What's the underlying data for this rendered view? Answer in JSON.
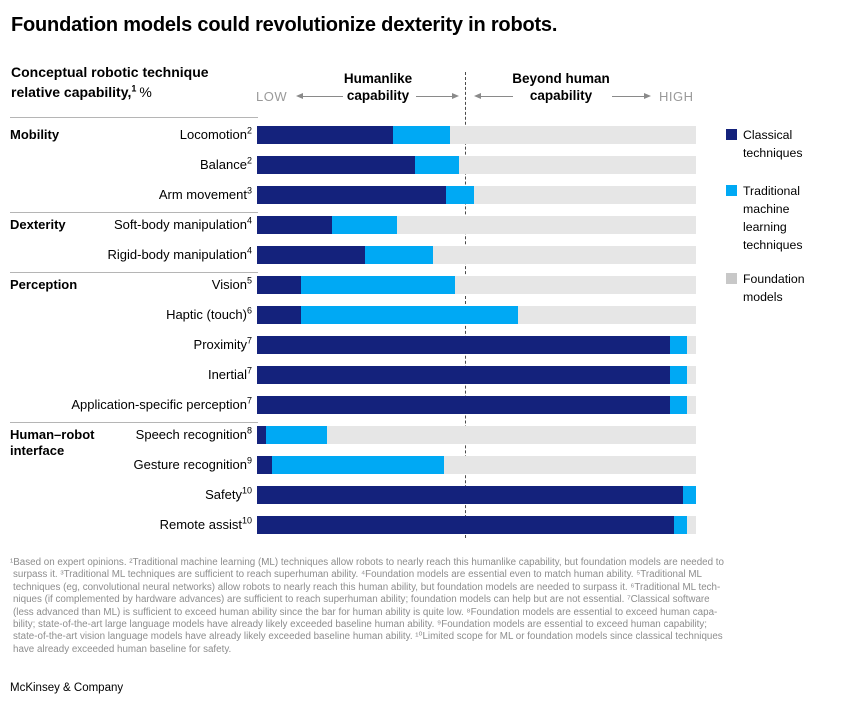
{
  "title": "Foundation models could revolutionize dexterity in robots.",
  "subtitle": {
    "line1": "Conceptual robotic technique",
    "line2": "relative capability,",
    "sup": "1",
    "unit": "%"
  },
  "axis": {
    "low": "LOW",
    "high": "HIGH",
    "left_label_line1": "Humanlike",
    "left_label_line2": "capability",
    "right_label_line1": "Beyond human",
    "right_label_line2": "capability"
  },
  "icons": {
    "left_arrowhead": "css-triangle-left",
    "right_arrowhead": "css-triangle-right"
  },
  "legend": [
    {
      "name": "Classical techniques",
      "color": "#14227c"
    },
    {
      "name": "Traditional machine learning techniques",
      "color": "#00a9f4"
    },
    {
      "name": "Foundation models",
      "color": "#c8c8c8"
    }
  ],
  "chart_data": {
    "type": "bar",
    "orientation": "horizontal-stacked",
    "title": "Conceptual robotic technique relative capability, %",
    "unit": "percent of axis (LOW to HIGH)",
    "axis_notes": {
      "min_label": "LOW",
      "max_label": "HIGH",
      "humanlike_boundary_pct": 47.5,
      "left_zone": "Humanlike capability",
      "right_zone": "Beyond human capability"
    },
    "series": [
      "Classical techniques",
      "Traditional machine learning techniques",
      "Foundation models"
    ],
    "colors": {
      "classical": "#14227c",
      "traditional_ml": "#00a9f4",
      "foundation": "#e6e6e6"
    },
    "groups": [
      {
        "name": "Mobility",
        "start_row": 0
      },
      {
        "name": "Dexterity",
        "start_row": 3
      },
      {
        "name": "Perception",
        "start_row": 5
      },
      {
        "name": "Human–robot interface",
        "start_row": 10
      }
    ],
    "rows": [
      {
        "group": "Mobility",
        "label": "Locomotion",
        "sup": "2",
        "classical": 31,
        "traditional_ml": 13,
        "foundation": 56
      },
      {
        "group": "Mobility",
        "label": "Balance",
        "sup": "2",
        "classical": 36,
        "traditional_ml": 10,
        "foundation": 54
      },
      {
        "group": "Mobility",
        "label": "Arm movement",
        "sup": "3",
        "classical": 43,
        "traditional_ml": 6.5,
        "foundation": 50.5
      },
      {
        "group": "Dexterity",
        "label": "Soft-body manipulation",
        "sup": "4",
        "classical": 17,
        "traditional_ml": 15,
        "foundation": 68
      },
      {
        "group": "Dexterity",
        "label": "Rigid-body manipulation",
        "sup": "4",
        "classical": 24.5,
        "traditional_ml": 15.5,
        "foundation": 60
      },
      {
        "group": "Perception",
        "label": "Vision",
        "sup": "5",
        "classical": 10,
        "traditional_ml": 35,
        "foundation": 55
      },
      {
        "group": "Perception",
        "label": "Haptic (touch)",
        "sup": "6",
        "classical": 10,
        "traditional_ml": 49.5,
        "foundation": 40.5
      },
      {
        "group": "Perception",
        "label": "Proximity",
        "sup": "7",
        "classical": 94,
        "traditional_ml": 4,
        "foundation": 2
      },
      {
        "group": "Perception",
        "label": "Inertial",
        "sup": "7",
        "classical": 94,
        "traditional_ml": 4,
        "foundation": 2
      },
      {
        "group": "Perception",
        "label": "Application-specific perception",
        "sup": "7",
        "classical": 94,
        "traditional_ml": 4,
        "foundation": 2
      },
      {
        "group": "Human–robot interface",
        "label": "Speech recognition",
        "sup": "8",
        "classical": 2,
        "traditional_ml": 14,
        "foundation": 84
      },
      {
        "group": "Human–robot interface",
        "label": "Gesture recognition",
        "sup": "9",
        "classical": 3.5,
        "traditional_ml": 39,
        "foundation": 57.5
      },
      {
        "group": "Human–robot interface",
        "label": "Safety",
        "sup": "10",
        "classical": 97,
        "traditional_ml": 3,
        "foundation": 0
      },
      {
        "group": "Human–robot interface",
        "label": "Remote assist",
        "sup": "10",
        "classical": 95,
        "traditional_ml": 3,
        "foundation": 2
      }
    ]
  },
  "footnotes": [
    "¹Based on expert opinions. ²Traditional machine learning (ML) techniques allow robots to nearly reach this humanlike capability, but foundation models are needed to",
    "surpass it. ³Traditional ML techniques are sufficient to reach superhuman ability. ⁴Foundation models are essential even to match human ability. ⁵Traditional ML",
    "techniques (eg, convolutional neural networks) allow robots to nearly reach this human ability, but foundation models are needed to surpass it. ⁶Traditional ML tech-",
    "niques (if complemented by hardware advances) are sufficient to reach superhuman ability; foundation models can help but are not essential. ⁷Classical software",
    "(less advanced than ML) is sufficient to exceed human ability since the bar for human ability is quite low. ⁸Foundation models are essential to exceed human capa-",
    "bility; state-of-the-art large language models have already likely exceeded baseline human ability. ⁹Foundation models are essential to exceed human capability;",
    "state-of-the-art vision language models have already likely exceeded baseline human ability. ¹⁰Limited scope for ML or foundation models since classical techniques",
    "have already exceeded human baseline for safety."
  ],
  "source": "McKinsey & Company"
}
